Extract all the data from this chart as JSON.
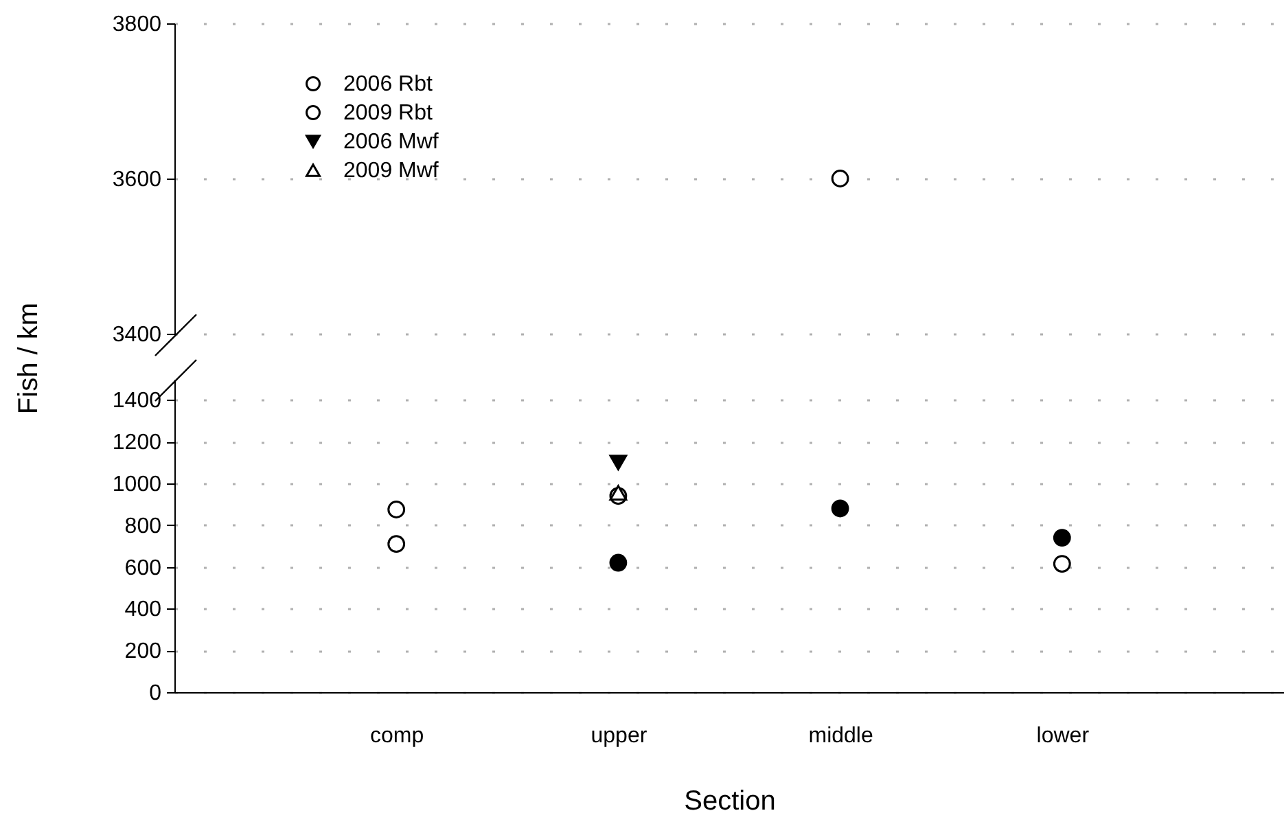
{
  "chart_data": [
    {
      "type": "scatter",
      "categories": [
        null,
        null,
        null,
        null
      ],
      "series": [
        {
          "name": "2006 Rbt",
          "color": "#ffffff",
          "marker": "circle",
          "values": [
            null,
            null,
            null,
            null
          ]
        },
        {
          "name": "2009 Rbt",
          "color": "#ffffff",
          "marker": "circle",
          "values": [
            null,
            null,
            3600,
            null
          ]
        },
        {
          "name": "2006 Mwf",
          "color": "#000000",
          "marker": "triangle-down",
          "values": [
            null,
            null,
            null,
            null
          ]
        },
        {
          "name": "2009 Mwf",
          "color": "#ffffff",
          "marker": "triangle",
          "values": [
            null,
            null,
            null,
            null
          ]
        }
      ],
      "ylim": [
        3400,
        3800
      ],
      "yticks": [
        3400,
        3600,
        3800
      ],
      "grid": "y",
      "legend": "top left",
      "tick_labels": "y"
    },
    {
      "type": "scatter",
      "xlabel": "Section",
      "ylabel": "Fish / km",
      "categories": [
        "comp",
        "upper",
        "middle",
        "lower"
      ],
      "series": [
        {
          "colors": [
            "#ffffff",
            "#000000",
            "#000000",
            "#000000"
          ],
          "marker": "circle",
          "values": [
            710,
            620,
            880,
            740
          ]
        },
        {
          "color": "#ffffff",
          "marker": "circle",
          "values": [
            875,
            940,
            null,
            615
          ]
        },
        {
          "color": "#000000",
          "marker": "triangle-down",
          "values": [
            null,
            1100,
            null,
            null
          ]
        },
        {
          "color": "#ffffff",
          "marker": "triangle",
          "values": [
            null,
            955,
            null,
            null
          ]
        }
      ],
      "ylim": [
        0,
        1500
      ],
      "yticks": [
        0,
        200,
        400,
        600,
        800,
        1000,
        1200,
        1400
      ],
      "grid": "y"
    }
  ]
}
